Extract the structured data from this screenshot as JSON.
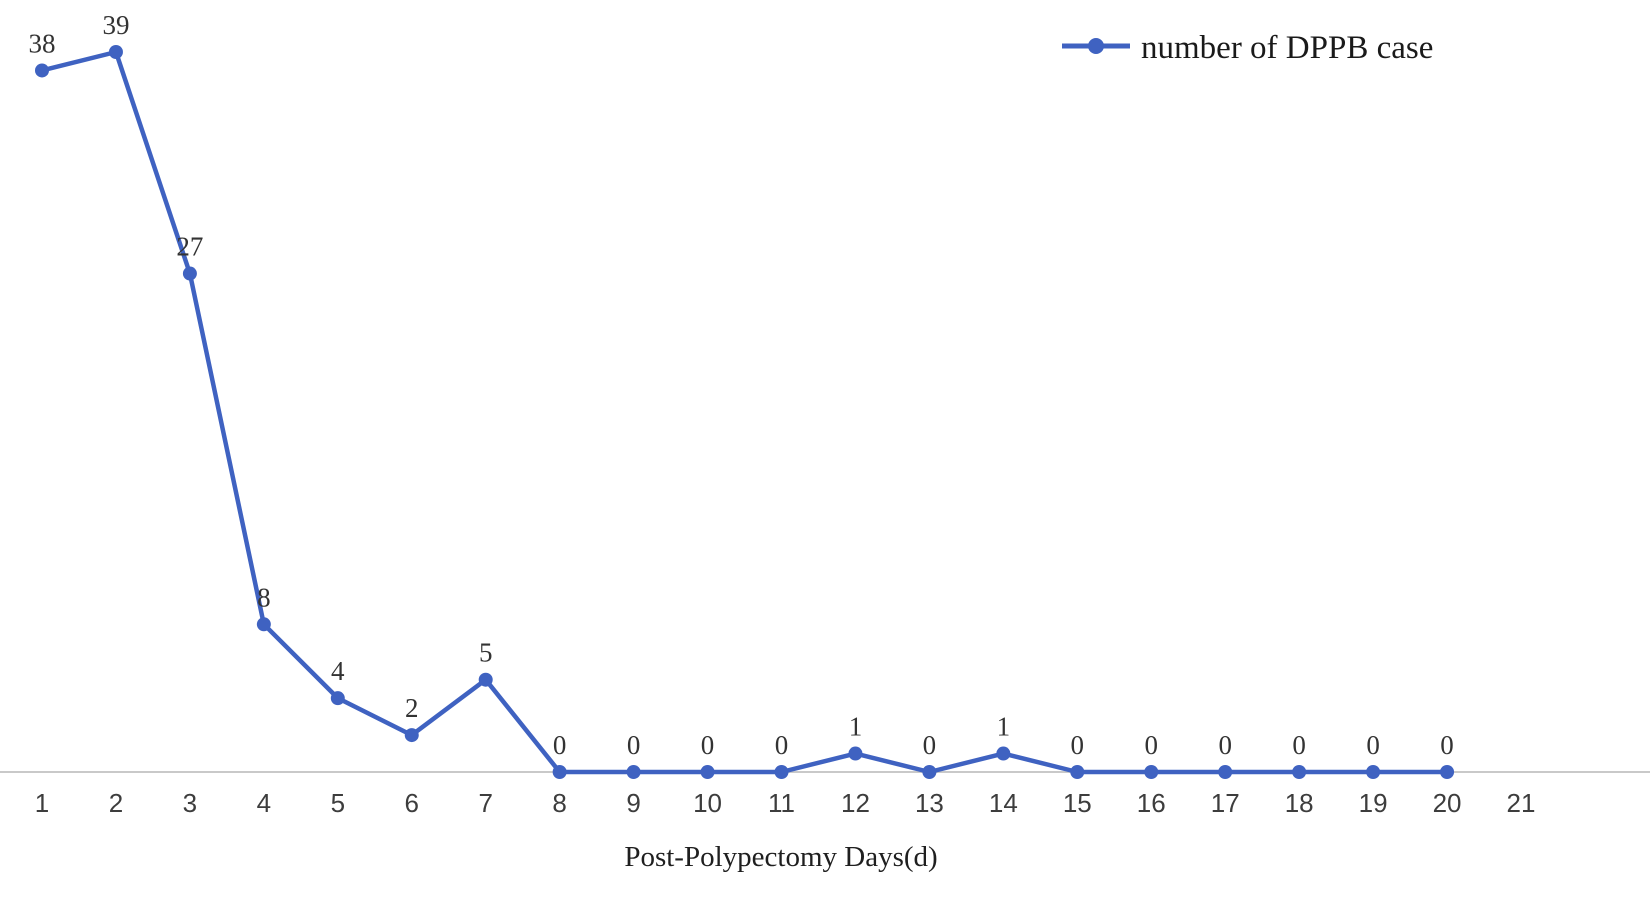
{
  "chart_data": {
    "type": "line",
    "title": "",
    "xlabel": "Post-Polypectomy Days(d)",
    "ylabel": "",
    "x_ticks": [
      1,
      2,
      3,
      4,
      5,
      6,
      7,
      8,
      9,
      10,
      11,
      12,
      13,
      14,
      15,
      16,
      17,
      18,
      19,
      20,
      21
    ],
    "series": [
      {
        "name": "number of DPPB case",
        "x": [
          1,
          2,
          3,
          4,
          5,
          6,
          7,
          8,
          9,
          10,
          11,
          12,
          13,
          14,
          15,
          16,
          17,
          18,
          19,
          20
        ],
        "values": [
          38,
          39,
          27,
          8,
          4,
          2,
          5,
          0,
          0,
          0,
          0,
          1,
          0,
          1,
          0,
          0,
          0,
          0,
          0,
          0
        ]
      }
    ],
    "ylim": [
      0,
      39
    ],
    "grid": false,
    "legend_position": "top-right",
    "line_color": "#3F62C1",
    "marker_color": "#3F62C1",
    "axis_line_color": "#c9c9c9",
    "label_color": "#333333"
  }
}
